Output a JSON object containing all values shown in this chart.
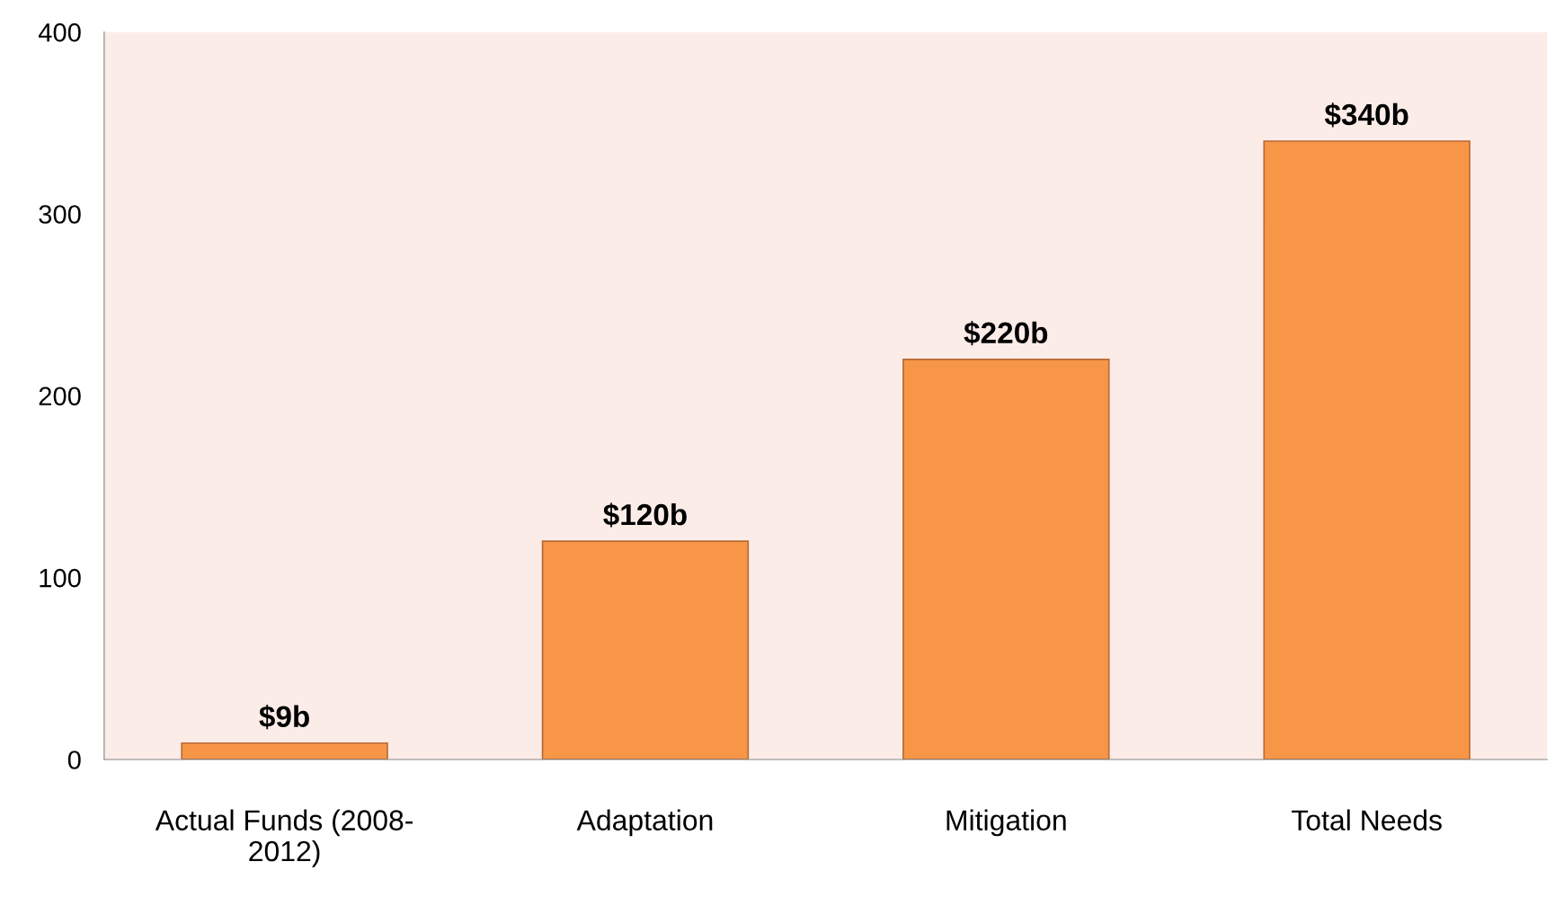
{
  "chart_data": {
    "type": "bar",
    "categories": [
      "Actual Funds (2008-\n2012)",
      "Adaptation",
      "Mitigation",
      "Total Needs"
    ],
    "values": [
      9,
      120,
      220,
      340
    ],
    "value_labels": [
      "$9b",
      "$120b",
      "$220b",
      "$340b"
    ],
    "color": "#f79646",
    "ylim": [
      0,
      400
    ],
    "yticks": [
      0,
      100,
      200,
      300,
      400
    ],
    "grid": false,
    "legend": false
  }
}
